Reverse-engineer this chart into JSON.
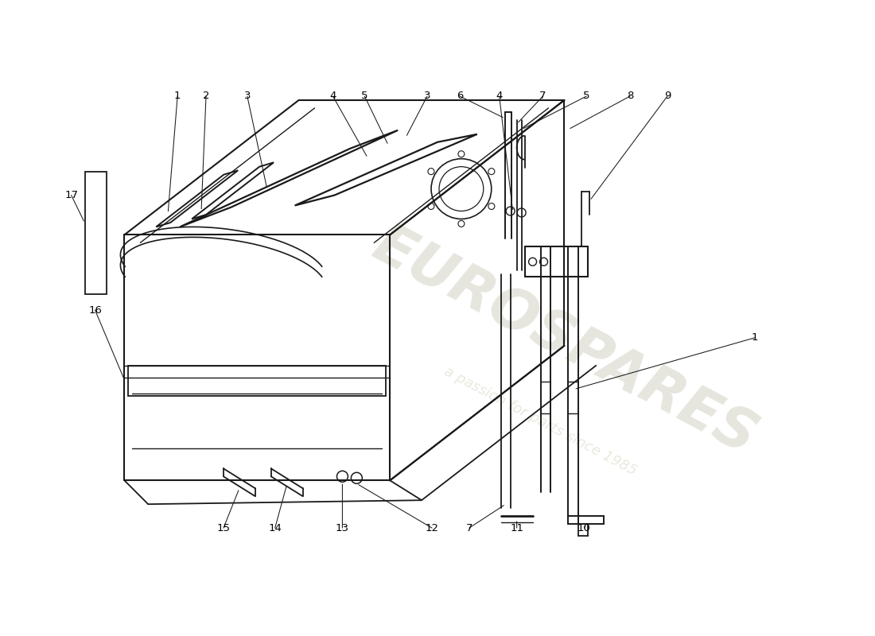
{
  "background_color": "#ffffff",
  "line_color": "#1a1a1a",
  "label_color": "#000000",
  "watermark_color1": "#c8c8b8",
  "watermark_color2": "#d4d4c0",
  "watermark_text1": "EUROSPARES",
  "watermark_text2": "a passion for parts since 1985",
  "fig_width": 11.0,
  "fig_height": 8.0,
  "dpi": 100,
  "label_fontsize": 9.5
}
